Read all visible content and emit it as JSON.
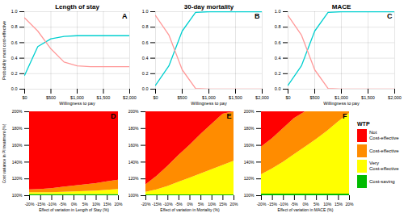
{
  "chart_data": [
    {
      "type": "line",
      "title": "Length of stay",
      "annotations": [
        "A"
      ],
      "xlabel": "Willingness to pay",
      "ylabel": "Probability most cost-effective",
      "x": [
        0,
        250,
        500,
        750,
        1000,
        1250,
        1500,
        1750,
        2000
      ],
      "series": [
        {
          "color": "#00CFCF",
          "values": [
            0.18,
            0.55,
            0.65,
            0.68,
            0.69,
            0.69,
            0.69,
            0.69,
            0.69
          ]
        },
        {
          "color": "#FF9999",
          "values": [
            0.92,
            0.75,
            0.52,
            0.35,
            0.3,
            0.29,
            0.29,
            0.29,
            0.29
          ]
        }
      ],
      "xlim": [
        0,
        2000
      ],
      "xticks": [
        {
          "value": 0,
          "label": "$0"
        },
        {
          "value": 500,
          "label": "$500"
        },
        {
          "value": 1000,
          "label": "$1,000"
        },
        {
          "value": 1500,
          "label": "$1,500"
        },
        {
          "value": 2000,
          "label": "$2,000"
        }
      ],
      "ylim": [
        0,
        1.0
      ],
      "yticks": [
        {
          "value": 0.0,
          "label": "0.0"
        },
        0.2,
        0.4,
        0.6,
        0.8,
        {
          "value": 1.0,
          "label": "1.0"
        }
      ],
      "grid": true
    },
    {
      "type": "line",
      "title": "30-day mortality",
      "annotations": [
        "B"
      ],
      "xlabel": "Willingness to pay",
      "x": [
        0,
        250,
        500,
        750,
        1000,
        1250,
        1500,
        1750,
        2000
      ],
      "series": [
        {
          "color": "#00CFCF",
          "values": [
            0.05,
            0.3,
            0.75,
            0.99,
            1.0,
            1.0,
            1.0,
            1.0,
            1.0
          ]
        },
        {
          "color": "#FF9999",
          "values": [
            0.95,
            0.7,
            0.25,
            0.01,
            0.0,
            0.0,
            0.0,
            0.0,
            0.0
          ]
        }
      ],
      "xlim": [
        0,
        2000
      ],
      "xticks": [
        {
          "value": 0,
          "label": "$0"
        },
        {
          "value": 500,
          "label": "$500"
        },
        {
          "value": 1000,
          "label": "$1,000"
        },
        {
          "value": 1500,
          "label": "$1,500"
        },
        {
          "value": 2000,
          "label": "$2,000"
        }
      ],
      "ylim": [
        0,
        1.0
      ],
      "yticks": [
        {
          "value": 0.0,
          "label": "0.0"
        },
        0.2,
        0.4,
        0.6,
        0.8,
        {
          "value": 1.0,
          "label": "1.0"
        }
      ],
      "grid": true
    },
    {
      "type": "line",
      "title": "MACE",
      "annotations": [
        "C"
      ],
      "xlabel": "Willingness to pay",
      "x": [
        0,
        250,
        500,
        750,
        1000,
        1250,
        1500,
        1750,
        2000
      ],
      "series": [
        {
          "color": "#00CFCF",
          "values": [
            0.05,
            0.3,
            0.75,
            0.99,
            1.0,
            1.0,
            1.0,
            1.0,
            1.0
          ]
        },
        {
          "color": "#FF9999",
          "values": [
            0.95,
            0.7,
            0.25,
            0.01,
            0.0,
            0.0,
            0.0,
            0.0,
            0.0
          ]
        }
      ],
      "xlim": [
        0,
        2000
      ],
      "xticks": [
        {
          "value": 0,
          "label": "$0"
        },
        {
          "value": 500,
          "label": "$500"
        },
        {
          "value": 1000,
          "label": "$1,000"
        },
        {
          "value": 1500,
          "label": "$1,500"
        },
        {
          "value": 2000,
          "label": "$2,000"
        }
      ],
      "ylim": [
        0,
        1.0
      ],
      "yticks": [
        {
          "value": 0.0,
          "label": "0.0"
        },
        0.2,
        0.4,
        0.6,
        0.8,
        {
          "value": 1.0,
          "label": "1.0"
        }
      ],
      "grid": true
    },
    {
      "type": "area",
      "annotations": [
        "D"
      ],
      "xlabel": "Effect of variation in Length of Stay (%)",
      "ylabel": "Cost variance in PI treatment (%)",
      "x": [
        -20,
        -15,
        -10,
        -5,
        0,
        5,
        10,
        15,
        20
      ],
      "series": [
        {
          "color": "#00BB00",
          "values": [
            101.5,
            101.5,
            101.5,
            101.5,
            101.5,
            101.5,
            101.5,
            101.5,
            101.5
          ]
        },
        {
          "color": "#FFFF00",
          "values": [
            103.5,
            103.5,
            103.5,
            104.0,
            104.5,
            105.0,
            105.5,
            106.5,
            107.5
          ]
        },
        {
          "color": "#FF8C00",
          "values": [
            107.0,
            107.5,
            108.5,
            110.0,
            111.5,
            113.0,
            114.5,
            116.5,
            118.5
          ]
        },
        {
          "color": "#FF0000",
          "values": [
            200,
            200,
            200,
            200,
            200,
            200,
            200,
            200,
            200
          ]
        }
      ],
      "xlim": [
        -20,
        20
      ],
      "xticks": [
        {
          "value": -20,
          "label": "-20%"
        },
        {
          "value": -15,
          "label": "-15%"
        },
        {
          "value": -10,
          "label": "-10%"
        },
        {
          "value": -5,
          "label": "-5%"
        },
        {
          "value": 0,
          "label": "0%"
        },
        {
          "value": 5,
          "label": "5%"
        },
        {
          "value": 10,
          "label": "10%"
        },
        {
          "value": 15,
          "label": "15%"
        },
        {
          "value": 20,
          "label": "20%"
        }
      ],
      "ylim": [
        100,
        200
      ],
      "yticks": [
        {
          "value": 100,
          "label": "100%"
        },
        {
          "value": 120,
          "label": "120%"
        },
        {
          "value": 140,
          "label": "140%"
        },
        {
          "value": 160,
          "label": "160%"
        },
        {
          "value": 180,
          "label": "180%"
        },
        {
          "value": 200,
          "label": "200%"
        }
      ],
      "grid": false
    },
    {
      "type": "area",
      "annotations": [
        "E"
      ],
      "xlabel": "Effect of variation in Mortality (%)",
      "x": [
        -20,
        -15,
        -10,
        -5,
        0,
        5,
        10,
        15,
        20
      ],
      "series": [
        {
          "color": "#00BB00",
          "values": [
            101.0,
            101.0,
            101.0,
            101.0,
            101.0,
            101.0,
            101.0,
            101.0,
            101.0
          ]
        },
        {
          "color": "#FFFF00",
          "values": [
            104.0,
            107.0,
            111.0,
            116.0,
            121.0,
            126.0,
            131.0,
            136.0,
            141.0
          ]
        },
        {
          "color": "#FF8C00",
          "values": [
            113.0,
            123.0,
            135.0,
            148.0,
            160.0,
            173.0,
            185.0,
            197.0,
            200.0
          ]
        },
        {
          "color": "#FF0000",
          "values": [
            200,
            200,
            200,
            200,
            200,
            200,
            200,
            200,
            200
          ]
        }
      ],
      "xlim": [
        -20,
        20
      ],
      "xticks": [
        {
          "value": -20,
          "label": "-20%"
        },
        {
          "value": -15,
          "label": "-15%"
        },
        {
          "value": -10,
          "label": "-10%"
        },
        {
          "value": -5,
          "label": "-5%"
        },
        {
          "value": 0,
          "label": "0%"
        },
        {
          "value": 5,
          "label": "5%"
        },
        {
          "value": 10,
          "label": "10%"
        },
        {
          "value": 15,
          "label": "15%"
        },
        {
          "value": 20,
          "label": "20%"
        }
      ],
      "ylim": [
        100,
        200
      ],
      "yticks": [
        {
          "value": 100,
          "label": "100%"
        },
        {
          "value": 120,
          "label": "120%"
        },
        {
          "value": 140,
          "label": "140%"
        },
        {
          "value": 160,
          "label": "160%"
        },
        {
          "value": 180,
          "label": "180%"
        },
        {
          "value": 200,
          "label": "200%"
        }
      ],
      "grid": false
    },
    {
      "type": "area",
      "annotations": [
        "F"
      ],
      "xlabel": "Effect of variation in MACE (%)",
      "x": [
        -20,
        -15,
        -10,
        -5,
        0,
        5,
        10,
        15,
        20
      ],
      "series": [
        {
          "name": "Cost-saving",
          "color": "#00BB00",
          "values": [
            102.0,
            102.0,
            102.0,
            102.0,
            102.0,
            102.0,
            102.0,
            102.0,
            102.0
          ]
        },
        {
          "name": "Very\nCost-effective",
          "color": "#FFFF00",
          "values": [
            125.0,
            132.0,
            140.0,
            149.0,
            158.0,
            167.0,
            177.0,
            188.0,
            198.0
          ]
        },
        {
          "name": "Cost-effective",
          "color": "#FF8C00",
          "values": [
            158.0,
            168.0,
            180.0,
            192.0,
            200.0,
            200.0,
            200.0,
            200.0,
            200.0
          ]
        },
        {
          "name": "Not\nCost-effective",
          "color": "#FF0000",
          "values": [
            200,
            200,
            200,
            200,
            200,
            200,
            200,
            200,
            200
          ]
        }
      ],
      "xlim": [
        -20,
        20
      ],
      "xticks": [
        {
          "value": -20,
          "label": "-20%"
        },
        {
          "value": -15,
          "label": "-15%"
        },
        {
          "value": -10,
          "label": "-10%"
        },
        {
          "value": -5,
          "label": "-5%"
        },
        {
          "value": 0,
          "label": "0%"
        },
        {
          "value": 5,
          "label": "5%"
        },
        {
          "value": 10,
          "label": "10%"
        },
        {
          "value": 15,
          "label": "15%"
        },
        {
          "value": 20,
          "label": "20%"
        }
      ],
      "ylim": [
        100,
        200
      ],
      "yticks": [
        {
          "value": 100,
          "label": "100%"
        },
        {
          "value": 120,
          "label": "120%"
        },
        {
          "value": 140,
          "label": "140%"
        },
        {
          "value": 160,
          "label": "160%"
        },
        {
          "value": 180,
          "label": "180%"
        },
        {
          "value": 200,
          "label": "200%"
        }
      ],
      "grid": false,
      "legend": "right",
      "legend_title": "WTP"
    }
  ]
}
